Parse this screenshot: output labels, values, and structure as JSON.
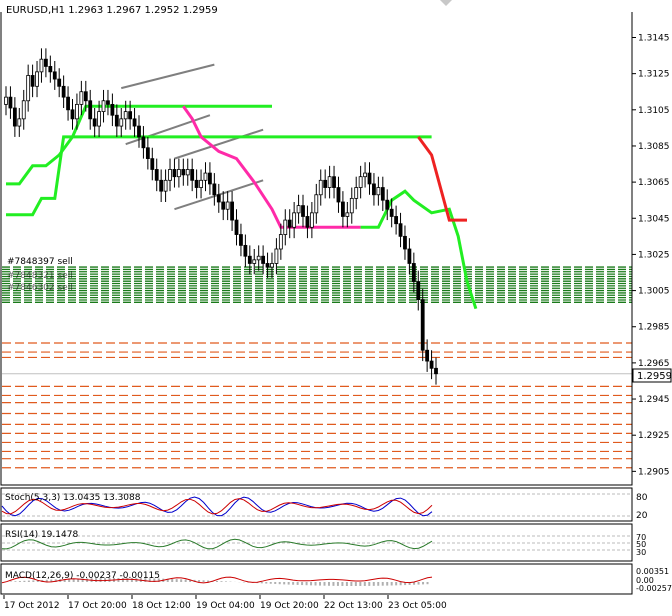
{
  "chart_data": {
    "type": "candlestick",
    "title": "EURUSD,H1  1.2963 1.2967 1.2952 1.2959",
    "colors": {
      "bull": "#000000",
      "bear": "#000000",
      "support": "#22ee22",
      "resistance": "#ee2222",
      "trail": "#ff2aa8",
      "ticket_sell": "#1a7a1a",
      "ticket_buy": "#e05a1e",
      "channel": "#7f7f7f",
      "price_line": "#c0c0c0",
      "stoch_main": "#0000cc",
      "stoch_signal": "#cc0000",
      "rsi": "#2a7a2a",
      "macd": "#b0b0b0",
      "macd_signal": "#cc0000"
    },
    "ylim": [
      1.2898,
      1.3158
    ],
    "y_ticks": [
      "1.3145",
      "1.3125",
      "1.3105",
      "1.3085",
      "1.3065",
      "1.3045",
      "1.3025",
      "1.3005",
      "1.2985",
      "1.2965",
      "1.2945",
      "1.2925",
      "1.2905"
    ],
    "current_price": "1.2959",
    "x_ticks": [
      "17 Oct 2012",
      "17 Oct 20:00",
      "18 Oct 12:00",
      "19 Oct 04:00",
      "19 Oct 20:00",
      "22 Oct 13:00",
      "23 Oct 05:00"
    ],
    "order_labels": [
      "#7848397 sell",
      "#7848321 sell",
      "#7846302 sell"
    ],
    "closes": [
      1.3112,
      1.3106,
      1.3096,
      1.31,
      1.311,
      1.3124,
      1.3118,
      1.3126,
      1.3133,
      1.3129,
      1.3126,
      1.3122,
      1.3118,
      1.3112,
      1.3105,
      1.31,
      1.3108,
      1.3115,
      1.311,
      1.31,
      1.3096,
      1.3104,
      1.311,
      1.3108,
      1.3102,
      1.3096,
      1.31,
      1.3104,
      1.31,
      1.3096,
      1.309,
      1.3084,
      1.3078,
      1.3072,
      1.3066,
      1.306,
      1.3066,
      1.3072,
      1.3068,
      1.3072,
      1.3069,
      1.3072,
      1.3066,
      1.3062,
      1.3066,
      1.307,
      1.3064,
      1.3058,
      1.3054,
      1.305,
      1.3054,
      1.3044,
      1.3036,
      1.303,
      1.3024,
      1.302,
      1.3022,
      1.3024,
      1.302,
      1.3018,
      1.302,
      1.3028,
      1.3036,
      1.3044,
      1.304,
      1.3048,
      1.3052,
      1.3046,
      1.304,
      1.3048,
      1.3058,
      1.3066,
      1.3062,
      1.3068,
      1.3062,
      1.3054,
      1.3046,
      1.3048,
      1.3056,
      1.3062,
      1.3068,
      1.307,
      1.3064,
      1.3058,
      1.3062,
      1.3055,
      1.305,
      1.3046,
      1.3042,
      1.3035,
      1.3028,
      1.302,
      1.301,
      1.3,
      1.2972,
      1.2966,
      1.2962,
      1.2959
    ],
    "support_line": [
      [
        0,
        1.3064
      ],
      [
        3,
        1.3064
      ],
      [
        6,
        1.3074
      ],
      [
        9,
        1.3074
      ],
      [
        12,
        1.308
      ],
      [
        15,
        1.309
      ],
      [
        18,
        1.3107
      ],
      [
        28,
        1.3107
      ],
      [
        56,
        1.3107
      ],
      [
        60,
        1.3107
      ]
    ],
    "resistance_line": [
      [
        83,
        1.309
      ],
      [
        86,
        1.308
      ],
      [
        90,
        1.3044
      ],
      [
        94,
        1.3044
      ]
    ],
    "stoch_levels": [
      "80",
      "20"
    ],
    "stoch_label": "Stoch(5,3,3) 13.0435 13.3088",
    "rsi_levels": [
      "70",
      "50",
      "30"
    ],
    "rsi_label": "RSI(14) 19.1478",
    "macd_label": "MACD(12,26,9) -0.00237 -0.00115",
    "macd_levels": [
      "0.00351",
      "0.00",
      "-0.00257"
    ]
  }
}
